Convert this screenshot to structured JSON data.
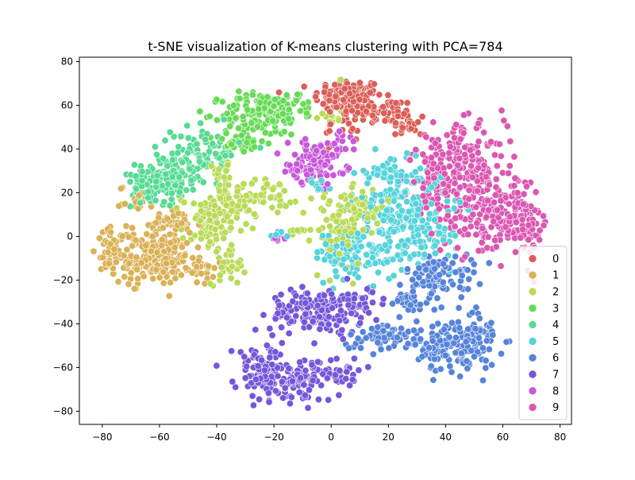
{
  "chart_data": {
    "type": "scatter",
    "title": "t-SNE visualization of K-means clustering with PCA=784",
    "xlabel": "",
    "ylabel": "",
    "xlim": [
      -88,
      84
    ],
    "ylim": [
      -86,
      82
    ],
    "x_ticks": [
      "−80",
      "−60",
      "−40",
      "−20",
      "0",
      "20",
      "40",
      "60",
      "80"
    ],
    "y_ticks": [
      "−80",
      "−60",
      "−40",
      "−20",
      "0",
      "20",
      "40",
      "60",
      "80"
    ],
    "grid": false,
    "legend_position": "lower right",
    "series": [
      {
        "name": "0",
        "color": "#db5f57",
        "clusters": [
          {
            "cx": 6,
            "cy": 64,
            "sx": 6,
            "sy": 4,
            "n": 120
          },
          {
            "cx": 18,
            "cy": 57,
            "sx": 6,
            "sy": 3,
            "n": 60
          },
          {
            "cx": 27,
            "cy": 51,
            "sx": 3,
            "sy": 3,
            "n": 25
          },
          {
            "cx": 4,
            "cy": 50,
            "sx": 3,
            "sy": 4,
            "n": 20
          }
        ]
      },
      {
        "name": "1",
        "color": "#dbb157",
        "clusters": [
          {
            "cx": -63,
            "cy": -10,
            "sx": 7,
            "sy": 6,
            "n": 210
          },
          {
            "cx": -76,
            "cy": -4,
            "sx": 3,
            "sy": 4,
            "n": 40
          },
          {
            "cx": -55,
            "cy": 6,
            "sx": 5,
            "sy": 3,
            "n": 40
          },
          {
            "cx": -68,
            "cy": 17,
            "sx": 3,
            "sy": 3,
            "n": 20
          },
          {
            "cx": -45,
            "cy": -16,
            "sx": 2,
            "sy": 3,
            "n": 20
          }
        ]
      },
      {
        "name": "2",
        "color": "#b9db57",
        "clusters": [
          {
            "cx": -28,
            "cy": 18,
            "sx": 7,
            "sy": 4,
            "n": 80
          },
          {
            "cx": -42,
            "cy": 5,
            "sx": 5,
            "sy": 7,
            "n": 80
          },
          {
            "cx": -38,
            "cy": 30,
            "sx": 3,
            "sy": 4,
            "n": 25
          },
          {
            "cx": -36,
            "cy": -12,
            "sx": 3,
            "sy": 5,
            "n": 30
          },
          {
            "cx": 3,
            "cy": 2,
            "sx": 5,
            "sy": 9,
            "n": 80
          },
          {
            "cx": 11,
            "cy": 14,
            "sx": 4,
            "sy": 4,
            "n": 35
          },
          {
            "cx": 0,
            "cy": 58,
            "sx": 2,
            "sy": 4,
            "n": 15
          },
          {
            "cx": -11,
            "cy": 3,
            "sx": 2,
            "sy": 2,
            "n": 8
          }
        ]
      },
      {
        "name": "3",
        "color": "#67db57",
        "clusters": [
          {
            "cx": -24,
            "cy": 56,
            "sx": 7,
            "sy": 5,
            "n": 140
          },
          {
            "cx": -30,
            "cy": 46,
            "sx": 5,
            "sy": 4,
            "n": 40
          },
          {
            "cx": -12,
            "cy": 60,
            "sx": 3,
            "sy": 3,
            "n": 20
          }
        ]
      },
      {
        "name": "4",
        "color": "#57db94",
        "clusters": [
          {
            "cx": -58,
            "cy": 28,
            "sx": 6,
            "sy": 6,
            "n": 120
          },
          {
            "cx": -44,
            "cy": 38,
            "sx": 6,
            "sy": 6,
            "n": 90
          },
          {
            "cx": -66,
            "cy": 20,
            "sx": 3,
            "sy": 3,
            "n": 25
          }
        ]
      },
      {
        "name": "5",
        "color": "#57d3db",
        "clusters": [
          {
            "cx": 25,
            "cy": 13,
            "sx": 8,
            "sy": 10,
            "n": 210
          },
          {
            "cx": 10,
            "cy": -8,
            "sx": 8,
            "sy": 6,
            "n": 110
          },
          {
            "cx": 33,
            "cy": -2,
            "sx": 5,
            "sy": 5,
            "n": 45
          },
          {
            "cx": 20,
            "cy": 30,
            "sx": 4,
            "sy": 4,
            "n": 30
          },
          {
            "cx": -4,
            "cy": 23,
            "sx": 2,
            "sy": 2,
            "n": 10
          },
          {
            "cx": -18,
            "cy": 1,
            "sx": 2,
            "sy": 1,
            "n": 8
          }
        ]
      },
      {
        "name": "6",
        "color": "#5784db",
        "clusters": [
          {
            "cx": 44,
            "cy": -50,
            "sx": 7,
            "sy": 6,
            "n": 170
          },
          {
            "cx": 38,
            "cy": -18,
            "sx": 6,
            "sy": 5,
            "n": 90
          },
          {
            "cx": 20,
            "cy": -46,
            "sx": 8,
            "sy": 3,
            "n": 70
          },
          {
            "cx": 26,
            "cy": -30,
            "sx": 4,
            "sy": 3,
            "n": 30
          },
          {
            "cx": 52,
            "cy": -42,
            "sx": 3,
            "sy": 4,
            "n": 25
          }
        ]
      },
      {
        "name": "7",
        "color": "#7457db",
        "clusters": [
          {
            "cx": -5,
            "cy": -34,
            "sx": 8,
            "sy": 5,
            "n": 160
          },
          {
            "cx": -24,
            "cy": -62,
            "sx": 5,
            "sy": 6,
            "n": 110
          },
          {
            "cx": -10,
            "cy": -66,
            "sx": 5,
            "sy": 5,
            "n": 90
          },
          {
            "cx": 10,
            "cy": -30,
            "sx": 5,
            "sy": 3,
            "n": 40
          },
          {
            "cx": 4,
            "cy": -62,
            "sx": 4,
            "sy": 3,
            "n": 25
          }
        ]
      },
      {
        "name": "8",
        "color": "#c957db",
        "clusters": [
          {
            "cx": -5,
            "cy": 34,
            "sx": 5,
            "sy": 5,
            "n": 100
          },
          {
            "cx": -12,
            "cy": 30,
            "sx": 3,
            "sy": 2,
            "n": 20
          },
          {
            "cx": 3,
            "cy": 42,
            "sx": 2,
            "sy": 3,
            "n": 15
          },
          {
            "cx": -18,
            "cy": 0,
            "sx": 1.5,
            "sy": 1.5,
            "n": 6
          }
        ]
      },
      {
        "name": "9",
        "color": "#db57b2",
        "clusters": [
          {
            "cx": 45,
            "cy": 35,
            "sx": 8,
            "sy": 8,
            "n": 180
          },
          {
            "cx": 56,
            "cy": 10,
            "sx": 9,
            "sy": 9,
            "n": 200
          },
          {
            "cx": 68,
            "cy": 5,
            "sx": 4,
            "sy": 6,
            "n": 60
          },
          {
            "cx": 35,
            "cy": 20,
            "sx": 4,
            "sy": 5,
            "n": 35
          }
        ]
      }
    ]
  }
}
